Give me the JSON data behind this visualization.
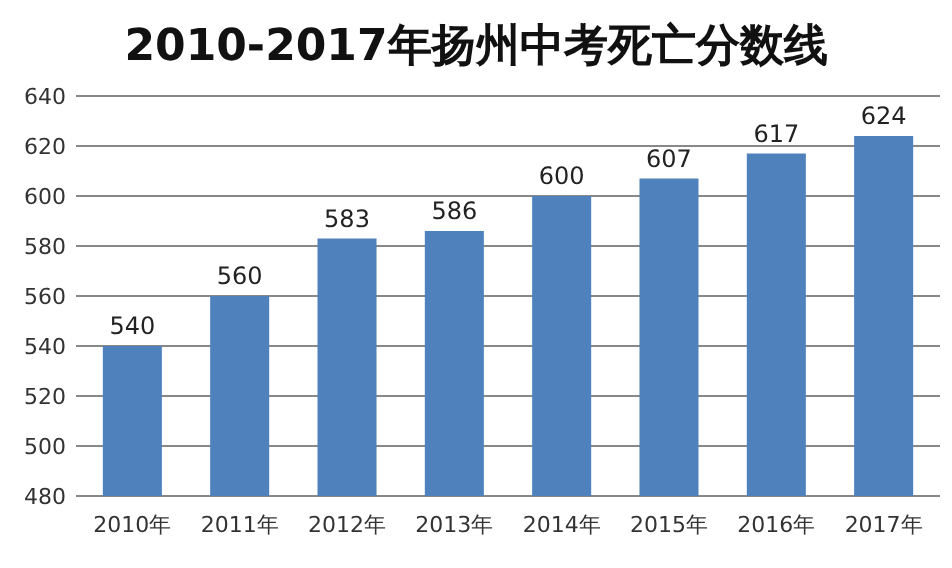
{
  "chart_data": {
    "type": "bar",
    "title": "2010-2017年扬州中考死亡分数线",
    "categories": [
      "2010年",
      "2011年",
      "2012年",
      "2013年",
      "2014年",
      "2015年",
      "2016年",
      "2017年"
    ],
    "values": [
      540,
      560,
      583,
      586,
      600,
      607,
      617,
      624
    ],
    "color": "#4f81bd",
    "ylim": [
      480,
      640
    ],
    "yticks": [
      480,
      500,
      520,
      540,
      560,
      580,
      600,
      620,
      640
    ],
    "grid": "y",
    "data_labels": true
  }
}
